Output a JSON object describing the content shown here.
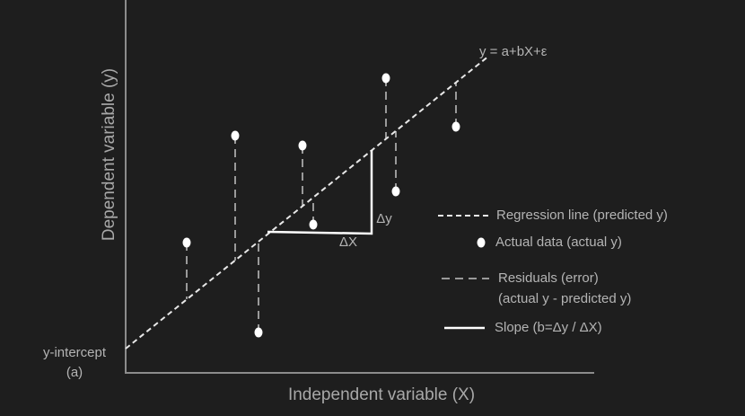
{
  "axes": {
    "x_label": "Independent variable (X)",
    "y_label": "Dependent variable (y)"
  },
  "labels": {
    "equation": "y = a+bX+ε",
    "delta_x": "ΔX",
    "delta_y": "Δy",
    "y_intercept": [
      "y-intercept",
      "(a)"
    ]
  },
  "legend": [
    {
      "label": "Regression line (predicted y)"
    },
    {
      "label": "Actual data (actual y)"
    },
    {
      "label": "Residuals (error)",
      "sublabel": "(actual y - predicted y)"
    },
    {
      "label": "Slope (b=Δy / ΔX)"
    }
  ]
}
